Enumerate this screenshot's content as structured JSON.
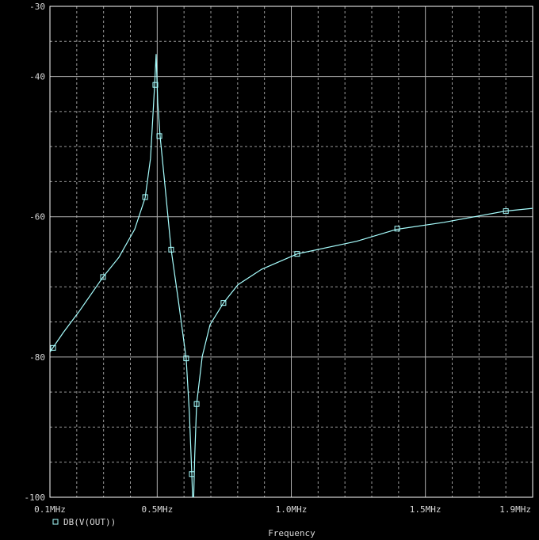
{
  "chart_data": {
    "type": "line",
    "x_label": "Frequency",
    "xlim": [
      0.1,
      1.9
    ],
    "ylim": [
      -30,
      -100
    ],
    "xticks": [
      {
        "value": 0.1,
        "label": "0.1MHz"
      },
      {
        "value": 0.5,
        "label": "0.5MHz"
      },
      {
        "value": 1.0,
        "label": "1.0MHz"
      },
      {
        "value": 1.5,
        "label": "1.5MHz"
      },
      {
        "value": 1.9,
        "label": "1.9MHz"
      }
    ],
    "yticks": [
      -30,
      -40,
      -60,
      -80,
      -100
    ],
    "x_minor_ticks": [
      0.2,
      0.3,
      0.4,
      0.6,
      0.7,
      0.8,
      0.9,
      1.1,
      1.2,
      1.3,
      1.4,
      1.6,
      1.7,
      1.8
    ],
    "y_minor_ticks": [
      -35,
      -45,
      -50,
      -55,
      -65,
      -70,
      -75,
      -85,
      -90,
      -95
    ],
    "grid": true,
    "background": "#000000",
    "series": [
      {
        "name": "DB(V(OUT))",
        "color": "#a8ffff",
        "x": [
          0.1,
          0.15,
          0.209,
          0.298,
          0.357,
          0.416,
          0.455,
          0.475,
          0.49,
          0.496,
          0.502,
          0.511,
          0.529,
          0.552,
          0.579,
          0.608,
          0.62,
          0.629,
          0.632,
          0.634,
          0.636,
          0.64,
          0.647,
          0.668,
          0.697,
          0.747,
          0.801,
          0.889,
          1.022,
          1.244,
          1.392,
          1.569,
          1.797,
          1.9
        ],
        "values": [
          -79.3,
          -76.5,
          -73.5,
          -68.6,
          -65.8,
          -61.8,
          -57.3,
          -51.7,
          -41.5,
          -36.8,
          -43.8,
          -48.6,
          -55.6,
          -64.7,
          -72,
          -80.2,
          -88,
          -96.7,
          -100,
          null,
          -100,
          -94,
          -86.7,
          -79.9,
          -75.4,
          -72.3,
          -69.7,
          -67.5,
          -65.3,
          -63.5,
          -61.8,
          -60.8,
          -59.2,
          -58.8
        ],
        "marker_points": {
          "x": [
            0.112,
            0.298,
            0.455,
            0.493,
            0.508,
            0.552,
            0.608,
            0.629,
            0.647,
            0.747,
            1.022,
            1.395,
            1.8
          ],
          "values": [
            -78.7,
            -68.6,
            -57.2,
            -41.2,
            -48.5,
            -64.7,
            -80.2,
            -96.7,
            -86.7,
            -72.3,
            -65.3,
            -61.7,
            -59.2
          ]
        }
      }
    ]
  }
}
